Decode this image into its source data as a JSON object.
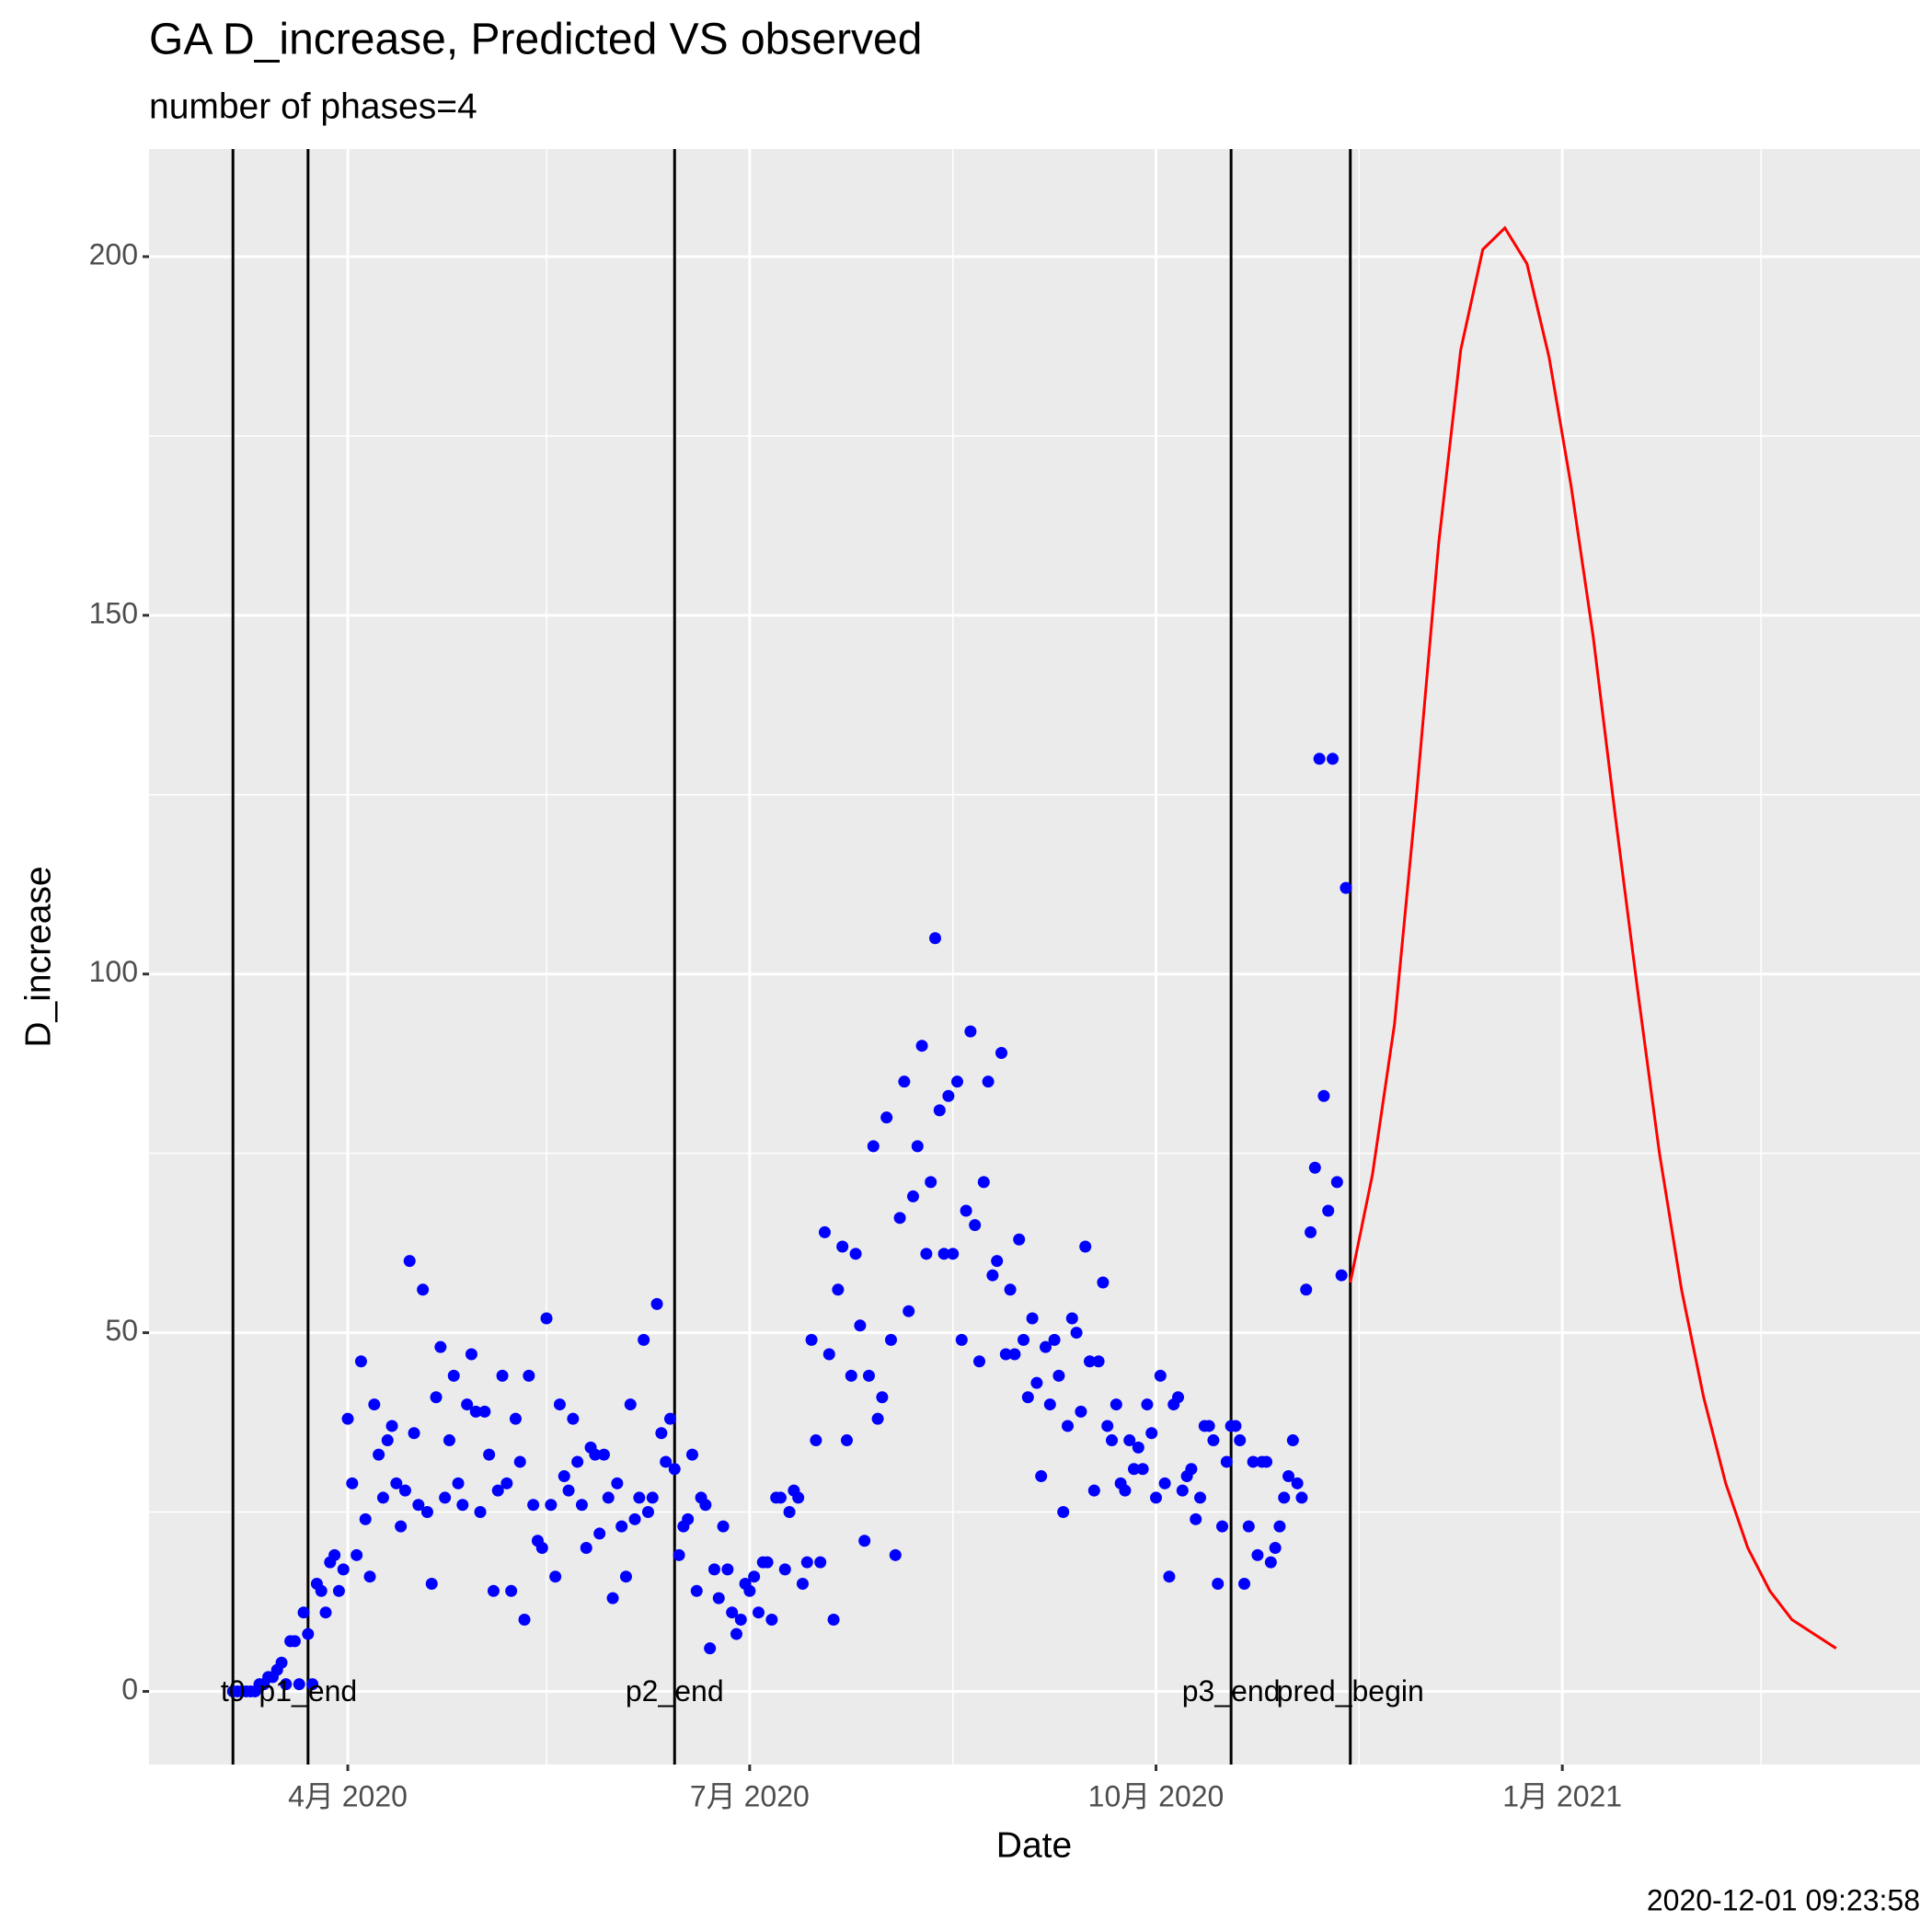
{
  "chart_data": {
    "type": "scatter",
    "title": "GA D_increase, Predicted VS observed",
    "subtitle": "number of phases=4",
    "x_label": "Date",
    "y_label": "D_increase",
    "caption": "2020-12-01 09:23:58",
    "xlim": [
      "2020-02-16",
      "2021-03-23"
    ],
    "ylim": [
      -10.2,
      215
    ],
    "xticks": [
      {
        "value": "2020-04-01",
        "label": "4月 2020"
      },
      {
        "value": "2020-07-01",
        "label": "7月 2020"
      },
      {
        "value": "2020-10-01",
        "label": "10月 2020"
      },
      {
        "value": "2021-01-01",
        "label": "1月 2021"
      }
    ],
    "xminor": [
      "2020-05-16",
      "2020-08-16",
      "2020-11-16",
      "2021-02-15"
    ],
    "yticks": [
      0,
      50,
      100,
      150,
      200
    ],
    "yminor": [
      25,
      75,
      125,
      175
    ],
    "grid": true,
    "vlines": [
      {
        "x": "2020-03-06",
        "label": "t0"
      },
      {
        "x": "2020-03-23",
        "label": "p1_end"
      },
      {
        "x": "2020-06-14",
        "label": "p2_end"
      },
      {
        "x": "2020-10-18",
        "label": "p3_end"
      },
      {
        "x": "2020-11-14",
        "label": "pred_begin"
      }
    ],
    "series": [
      {
        "type": "scatter",
        "color": "#0000ff",
        "x": [
          "2020-03-06",
          "2020-03-07",
          "2020-03-08",
          "2020-03-09",
          "2020-03-10",
          "2020-03-11",
          "2020-03-12",
          "2020-03-13",
          "2020-03-14",
          "2020-03-15",
          "2020-03-16",
          "2020-03-17",
          "2020-03-18",
          "2020-03-19",
          "2020-03-20",
          "2020-03-21",
          "2020-03-22",
          "2020-03-23",
          "2020-03-24",
          "2020-03-25",
          "2020-03-26",
          "2020-03-27",
          "2020-03-28",
          "2020-03-29",
          "2020-03-30",
          "2020-03-31",
          "2020-04-01",
          "2020-04-02",
          "2020-04-03",
          "2020-04-04",
          "2020-04-05",
          "2020-04-06",
          "2020-04-07",
          "2020-04-08",
          "2020-04-09",
          "2020-04-10",
          "2020-04-11",
          "2020-04-12",
          "2020-04-13",
          "2020-04-14",
          "2020-04-15",
          "2020-04-16",
          "2020-04-17",
          "2020-04-18",
          "2020-04-19",
          "2020-04-20",
          "2020-04-21",
          "2020-04-22",
          "2020-04-23",
          "2020-04-24",
          "2020-04-25",
          "2020-04-26",
          "2020-04-27",
          "2020-04-28",
          "2020-04-29",
          "2020-04-30",
          "2020-05-01",
          "2020-05-02",
          "2020-05-03",
          "2020-05-04",
          "2020-05-05",
          "2020-05-06",
          "2020-05-07",
          "2020-05-08",
          "2020-05-09",
          "2020-05-10",
          "2020-05-11",
          "2020-05-12",
          "2020-05-13",
          "2020-05-14",
          "2020-05-15",
          "2020-05-16",
          "2020-05-17",
          "2020-05-18",
          "2020-05-19",
          "2020-05-20",
          "2020-05-21",
          "2020-05-22",
          "2020-05-23",
          "2020-05-24",
          "2020-05-25",
          "2020-05-26",
          "2020-05-27",
          "2020-05-28",
          "2020-05-29",
          "2020-05-30",
          "2020-05-31",
          "2020-06-01",
          "2020-06-02",
          "2020-06-03",
          "2020-06-04",
          "2020-06-05",
          "2020-06-06",
          "2020-06-07",
          "2020-06-08",
          "2020-06-09",
          "2020-06-10",
          "2020-06-11",
          "2020-06-12",
          "2020-06-13",
          "2020-06-14",
          "2020-06-15",
          "2020-06-16",
          "2020-06-17",
          "2020-06-18",
          "2020-06-19",
          "2020-06-20",
          "2020-06-21",
          "2020-06-22",
          "2020-06-23",
          "2020-06-24",
          "2020-06-25",
          "2020-06-26",
          "2020-06-27",
          "2020-06-28",
          "2020-06-29",
          "2020-06-30",
          "2020-07-01",
          "2020-07-02",
          "2020-07-03",
          "2020-07-04",
          "2020-07-05",
          "2020-07-06",
          "2020-07-07",
          "2020-07-08",
          "2020-07-09",
          "2020-07-10",
          "2020-07-11",
          "2020-07-12",
          "2020-07-13",
          "2020-07-14",
          "2020-07-15",
          "2020-07-16",
          "2020-07-17",
          "2020-07-18",
          "2020-07-19",
          "2020-07-20",
          "2020-07-21",
          "2020-07-22",
          "2020-07-23",
          "2020-07-24",
          "2020-07-25",
          "2020-07-26",
          "2020-07-27",
          "2020-07-28",
          "2020-07-29",
          "2020-07-30",
          "2020-07-31",
          "2020-08-01",
          "2020-08-02",
          "2020-08-03",
          "2020-08-04",
          "2020-08-05",
          "2020-08-06",
          "2020-08-07",
          "2020-08-08",
          "2020-08-09",
          "2020-08-10",
          "2020-08-11",
          "2020-08-12",
          "2020-08-13",
          "2020-08-14",
          "2020-08-15",
          "2020-08-16",
          "2020-08-17",
          "2020-08-18",
          "2020-08-19",
          "2020-08-20",
          "2020-08-21",
          "2020-08-22",
          "2020-08-23",
          "2020-08-24",
          "2020-08-25",
          "2020-08-26",
          "2020-08-27",
          "2020-08-28",
          "2020-08-29",
          "2020-08-30",
          "2020-08-31",
          "2020-09-01",
          "2020-09-02",
          "2020-09-03",
          "2020-09-04",
          "2020-09-05",
          "2020-09-06",
          "2020-09-07",
          "2020-09-08",
          "2020-09-09",
          "2020-09-10",
          "2020-09-11",
          "2020-09-12",
          "2020-09-13",
          "2020-09-14",
          "2020-09-15",
          "2020-09-16",
          "2020-09-17",
          "2020-09-18",
          "2020-09-19",
          "2020-09-20",
          "2020-09-21",
          "2020-09-22",
          "2020-09-23",
          "2020-09-24",
          "2020-09-25",
          "2020-09-26",
          "2020-09-27",
          "2020-09-28",
          "2020-09-29",
          "2020-09-30",
          "2020-10-01",
          "2020-10-02",
          "2020-10-03",
          "2020-10-04",
          "2020-10-05",
          "2020-10-06",
          "2020-10-07",
          "2020-10-08",
          "2020-10-09",
          "2020-10-10",
          "2020-10-11",
          "2020-10-12",
          "2020-10-13",
          "2020-10-14",
          "2020-10-15",
          "2020-10-16",
          "2020-10-17",
          "2020-10-18",
          "2020-10-19",
          "2020-10-20",
          "2020-10-21",
          "2020-10-22",
          "2020-10-23",
          "2020-10-24",
          "2020-10-25",
          "2020-10-26",
          "2020-10-27",
          "2020-10-28",
          "2020-10-29",
          "2020-10-30",
          "2020-10-31",
          "2020-11-01",
          "2020-11-02",
          "2020-11-03",
          "2020-11-04",
          "2020-11-05",
          "2020-11-06",
          "2020-11-07",
          "2020-11-08",
          "2020-11-09",
          "2020-11-10",
          "2020-11-11",
          "2020-11-12",
          "2020-11-13"
        ],
        "values": [
          0,
          0,
          0,
          0,
          0,
          0,
          1,
          1,
          2,
          2,
          3,
          4,
          1,
          7,
          7,
          1,
          11,
          8,
          1,
          15,
          14,
          11,
          18,
          19,
          14,
          17,
          38,
          29,
          19,
          46,
          24,
          16,
          40,
          33,
          27,
          35,
          37,
          29,
          23,
          28,
          60,
          36,
          26,
          56,
          25,
          15,
          41,
          48,
          27,
          35,
          44,
          29,
          26,
          40,
          47,
          39,
          25,
          39,
          33,
          14,
          28,
          44,
          29,
          14,
          38,
          32,
          10,
          44,
          26,
          21,
          20,
          52,
          26,
          16,
          40,
          30,
          28,
          38,
          32,
          26,
          20,
          34,
          33,
          22,
          33,
          27,
          13,
          29,
          23,
          16,
          40,
          24,
          27,
          49,
          25,
          27,
          54,
          36,
          32,
          38,
          31,
          19,
          23,
          24,
          33,
          14,
          27,
          26,
          6,
          17,
          13,
          23,
          17,
          11,
          8,
          10,
          15,
          14,
          16,
          11,
          18,
          18,
          10,
          27,
          27,
          17,
          25,
          28,
          27,
          15,
          18,
          49,
          35,
          18,
          64,
          47,
          10,
          56,
          62,
          35,
          44,
          61,
          51,
          21,
          44,
          76,
          38,
          41,
          80,
          49,
          19,
          66,
          85,
          53,
          69,
          76,
          90,
          61,
          71,
          105,
          81,
          61,
          83,
          61,
          85,
          49,
          67,
          92,
          65,
          46,
          71,
          85,
          58,
          60,
          89,
          47,
          56,
          47,
          63,
          49,
          41,
          52,
          43,
          30,
          48,
          40,
          49,
          44,
          25,
          37,
          52,
          50,
          39,
          62,
          46,
          28,
          46,
          57,
          37,
          35,
          40,
          29,
          28,
          35,
          31,
          34,
          31,
          40,
          36,
          27,
          44,
          29,
          16,
          40,
          41,
          28,
          30,
          31,
          24,
          27,
          37,
          37,
          35,
          15,
          23,
          32,
          37,
          37,
          35,
          15,
          23,
          32,
          19,
          32,
          32,
          18,
          20,
          23,
          27,
          30,
          35,
          29,
          27,
          56,
          64,
          73,
          130,
          83,
          67,
          130,
          71,
          58,
          112
        ]
      },
      {
        "type": "line",
        "color": "#ff0000",
        "x": [
          "2020-11-14",
          "2020-11-19",
          "2020-11-24",
          "2020-11-29",
          "2020-12-04",
          "2020-12-09",
          "2020-12-14",
          "2020-12-19",
          "2020-12-24",
          "2020-12-29",
          "2021-01-03",
          "2021-01-08",
          "2021-01-13",
          "2021-01-18",
          "2021-01-23",
          "2021-01-28",
          "2021-02-02",
          "2021-02-07",
          "2021-02-12",
          "2021-02-17",
          "2021-02-22",
          "2021-02-27",
          "2021-03-04"
        ],
        "values": [
          57,
          72,
          93,
          125,
          160,
          187,
          201,
          204,
          199,
          186,
          168,
          147,
          122,
          98,
          75,
          56,
          41,
          29,
          20,
          14,
          10,
          8,
          6
        ]
      }
    ]
  }
}
